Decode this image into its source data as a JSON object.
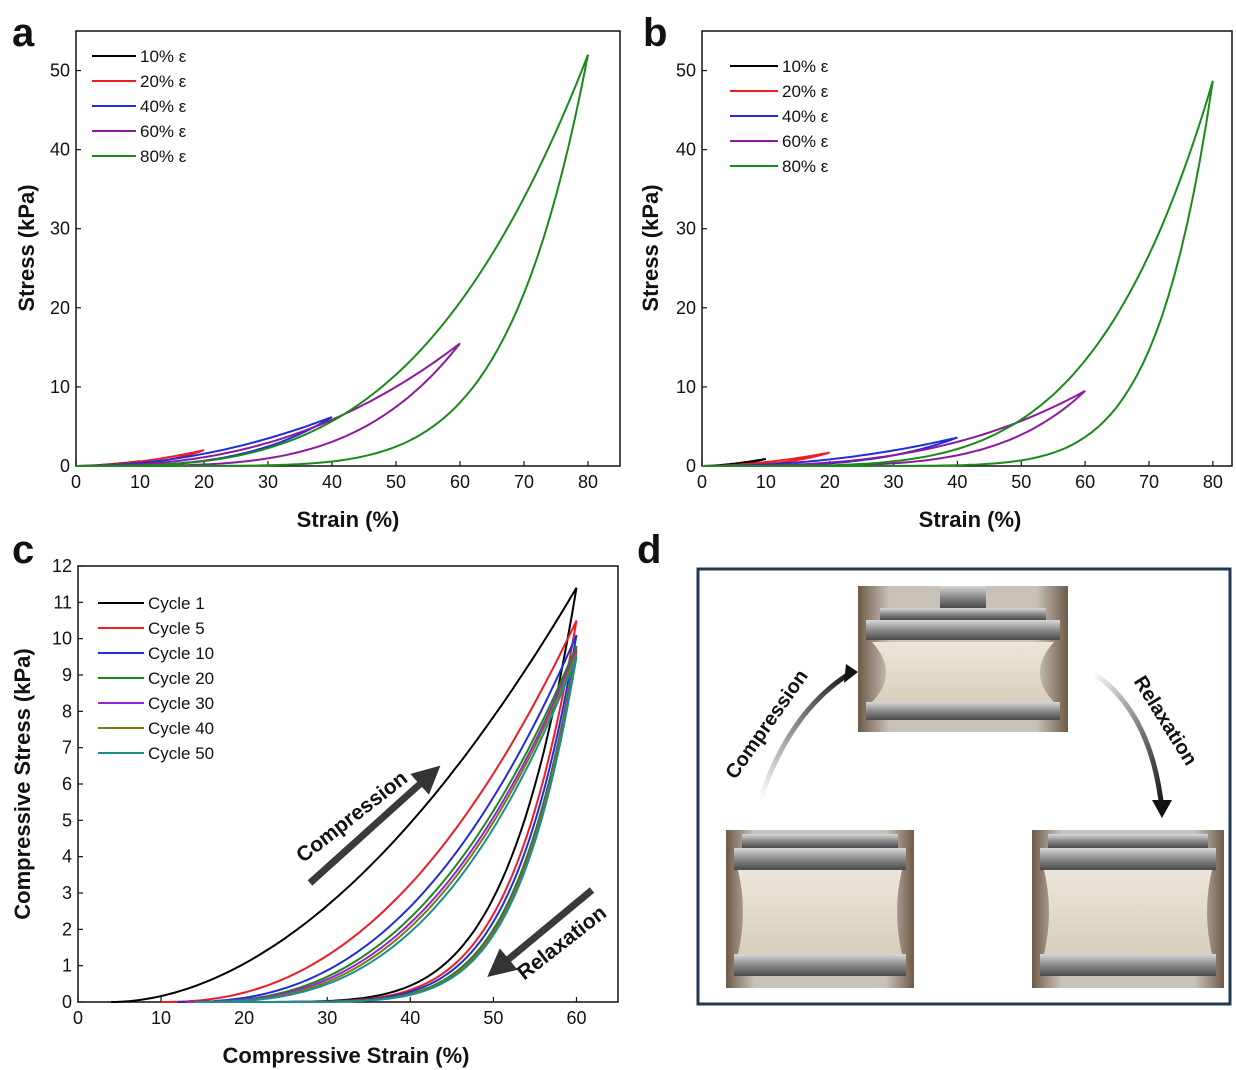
{
  "chart_data": [
    {
      "id": "a",
      "type": "line",
      "panel_letter": "a",
      "xlabel": "Strain (%)",
      "ylabel": "Stress (kPa)",
      "xlim": [
        0,
        85
      ],
      "ylim": [
        0,
        55
      ],
      "x_ticks": [
        0,
        10,
        20,
        30,
        40,
        50,
        60,
        70,
        80
      ],
      "y_ticks": [
        0,
        10,
        20,
        30,
        40,
        50
      ],
      "grid": false,
      "legend_position": "top-left",
      "series": [
        {
          "name": "10% ε",
          "color": "#000000",
          "peak_strain": 10,
          "peak_stress": 0.6
        },
        {
          "name": "20% ε",
          "color": "#ee1c25",
          "peak_strain": 20,
          "peak_stress": 2.0
        },
        {
          "name": "40% ε",
          "color": "#1f2fd6",
          "peak_strain": 40,
          "peak_stress": 6.2
        },
        {
          "name": "60% ε",
          "color": "#8b1a9e",
          "peak_strain": 60,
          "peak_stress": 15.5
        },
        {
          "name": "80% ε",
          "color": "#1a8a1a",
          "peak_strain": 80,
          "peak_stress": 52.0
        }
      ]
    },
    {
      "id": "b",
      "type": "line",
      "panel_letter": "b",
      "xlabel": "Strain (%)",
      "ylabel": "Stress (kPa)",
      "xlim": [
        0,
        83
      ],
      "ylim": [
        0,
        55
      ],
      "x_ticks": [
        0,
        10,
        20,
        30,
        40,
        50,
        60,
        70,
        80
      ],
      "y_ticks": [
        0,
        10,
        20,
        30,
        40,
        50
      ],
      "grid": false,
      "legend_position": "top-left",
      "series": [
        {
          "name": "10% ε",
          "color": "#000000",
          "peak_strain": 10,
          "peak_stress": 0.9
        },
        {
          "name": "20% ε",
          "color": "#ee1c25",
          "peak_strain": 20,
          "peak_stress": 1.7
        },
        {
          "name": "40% ε",
          "color": "#1f2fd6",
          "peak_strain": 40,
          "peak_stress": 3.6
        },
        {
          "name": "60% ε",
          "color": "#8b1a9e",
          "peak_strain": 60,
          "peak_stress": 9.5
        },
        {
          "name": "80% ε",
          "color": "#1a8a1a",
          "peak_strain": 80,
          "peak_stress": 48.7
        }
      ]
    },
    {
      "id": "c",
      "type": "line",
      "panel_letter": "c",
      "xlabel": "Compressive Strain (%)",
      "ylabel": "Compressive Stress (kPa)",
      "xlim": [
        0,
        65
      ],
      "ylim": [
        0,
        12
      ],
      "x_ticks": [
        0,
        10,
        20,
        30,
        40,
        50,
        60
      ],
      "y_ticks": [
        0,
        1,
        2,
        3,
        4,
        5,
        6,
        7,
        8,
        9,
        10,
        11,
        12
      ],
      "grid": false,
      "legend_position": "top-left",
      "series": [
        {
          "name": "Cycle 1",
          "color": "#000000",
          "peak_strain": 60,
          "peak_stress": 11.4
        },
        {
          "name": "Cycle 5",
          "color": "#ee1c25",
          "peak_strain": 60,
          "peak_stress": 10.5
        },
        {
          "name": "Cycle 10",
          "color": "#1f2fd6",
          "peak_strain": 60,
          "peak_stress": 10.1
        },
        {
          "name": "Cycle 20",
          "color": "#1a8a1a",
          "peak_strain": 60,
          "peak_stress": 9.8
        },
        {
          "name": "Cycle 30",
          "color": "#9b1fd6",
          "peak_strain": 60,
          "peak_stress": 9.7
        },
        {
          "name": "Cycle 40",
          "color": "#7a7a10",
          "peak_strain": 60,
          "peak_stress": 9.6
        },
        {
          "name": "Cycle 50",
          "color": "#1a8f8f",
          "peak_strain": 60,
          "peak_stress": 9.5
        }
      ],
      "annotations": [
        {
          "text": "Compression",
          "arrow": "up-right"
        },
        {
          "text": "Relaxation",
          "arrow": "down-left"
        }
      ]
    }
  ],
  "panel_d": {
    "letter": "d",
    "compression_label": "Compression",
    "relaxation_label": "Relaxation",
    "frame_color": "#1f3a55"
  }
}
